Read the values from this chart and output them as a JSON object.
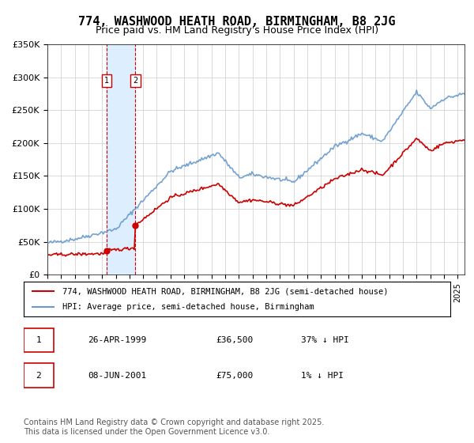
{
  "title": "774, WASHWOOD HEATH ROAD, BIRMINGHAM, B8 2JG",
  "subtitle": "Price paid vs. HM Land Registry's House Price Index (HPI)",
  "ylim": [
    0,
    350000
  ],
  "yticks": [
    0,
    50000,
    100000,
    150000,
    200000,
    250000,
    300000,
    350000
  ],
  "ytick_labels": [
    "£0",
    "£50K",
    "£100K",
    "£150K",
    "£200K",
    "£250K",
    "£300K",
    "£350K"
  ],
  "xstart": 1995.0,
  "xend": 2025.5,
  "sale1_date": 1999.32,
  "sale1_price": 36500,
  "sale1_label": "1",
  "sale2_date": 2001.44,
  "sale2_price": 75000,
  "sale2_label": "2",
  "legend_line1": "774, WASHWOOD HEATH ROAD, BIRMINGHAM, B8 2JG (semi-detached house)",
  "legend_line2": "HPI: Average price, semi-detached house, Birmingham",
  "table_row1": [
    "1",
    "26-APR-1999",
    "£36,500",
    "37% ↓ HPI"
  ],
  "table_row2": [
    "2",
    "08-JUN-2001",
    "£75,000",
    "1% ↓ HPI"
  ],
  "footer": "Contains HM Land Registry data © Crown copyright and database right 2025.\nThis data is licensed under the Open Government Licence v3.0.",
  "line_color_red": "#cc0000",
  "line_color_blue": "#6699cc",
  "shade_color": "#ddeeff",
  "bg_color": "#ffffff",
  "grid_color": "#cccccc",
  "title_fontsize": 11,
  "subtitle_fontsize": 9,
  "tick_fontsize": 8,
  "legend_fontsize": 8,
  "table_fontsize": 8,
  "footer_fontsize": 7
}
